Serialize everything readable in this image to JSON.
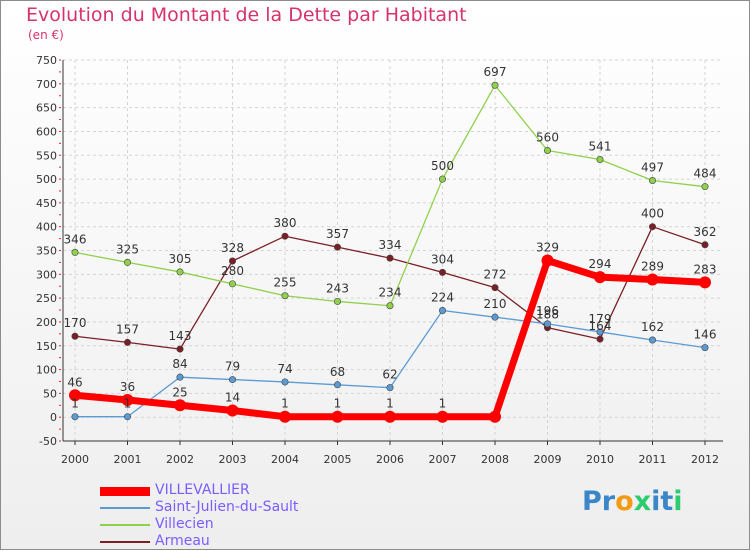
{
  "header": {
    "title": "Evolution du Montant de la Dette par Habitant",
    "subtitle": "(en €)"
  },
  "logo": {
    "text": "Proxiti",
    "letters": [
      "P",
      "r",
      "o",
      "x",
      "i",
      "t",
      "i"
    ],
    "colors": [
      "#3a86c8",
      "#3a86c8",
      "#f39c12",
      "#2ecc71",
      "#3a86c8",
      "#3a86c8",
      "#2ecc71"
    ]
  },
  "chart_data": {
    "type": "line",
    "x": [
      "2000",
      "2001",
      "2002",
      "2003",
      "2004",
      "2005",
      "2006",
      "2007",
      "2008",
      "2009",
      "2010",
      "2011",
      "2012"
    ],
    "ylim": [
      -50,
      750
    ],
    "yticks": [
      -50,
      0,
      50,
      100,
      150,
      200,
      250,
      300,
      350,
      400,
      450,
      500,
      550,
      600,
      650,
      700,
      750
    ],
    "grid": true,
    "legend_position": "bottom-left",
    "series": [
      {
        "name": "Armeau",
        "color": "#7b1f24",
        "values": [
          170,
          157,
          143,
          328,
          380,
          357,
          334,
          304,
          272,
          188,
          164,
          400,
          362
        ],
        "labels": [
          "170",
          "157",
          "143",
          "328",
          "380",
          "357",
          "334",
          "304",
          "272",
          "188",
          "164",
          "400",
          "362"
        ]
      },
      {
        "name": "Villecien",
        "color": "#8fd04c",
        "values": [
          346,
          325,
          305,
          280,
          255,
          243,
          234,
          500,
          697,
          560,
          541,
          497,
          484
        ],
        "labels": [
          "346",
          "325",
          "305",
          "280",
          "255",
          "243",
          "234",
          "500",
          "697",
          "560",
          "541",
          "497",
          "484"
        ]
      },
      {
        "name": "Saint-Julien-du-Sault",
        "color": "#5a9bd4",
        "values": [
          1,
          1,
          84,
          79,
          74,
          68,
          62,
          224,
          210,
          196,
          179,
          162,
          146
        ],
        "labels": [
          "1",
          "1",
          "84",
          "79",
          "74",
          "68",
          "62",
          "224",
          "210",
          "196",
          "179",
          "162",
          "146"
        ]
      },
      {
        "name": "VILLEVALLIER",
        "color": "#ff0000",
        "values": [
          46,
          36,
          25,
          14,
          1,
          1,
          1,
          1,
          1,
          329,
          294,
          289,
          283
        ],
        "labels": [
          "46",
          "36",
          "25",
          "14",
          "1",
          "1",
          "1",
          "1",
          "",
          "329",
          "294",
          "289",
          "283"
        ]
      }
    ],
    "legend": [
      {
        "name": "VILLEVALLIER",
        "color": "#ff0000"
      },
      {
        "name": "Saint-Julien-du-Sault",
        "color": "#5a9bd4"
      },
      {
        "name": "Villecien",
        "color": "#8fd04c"
      },
      {
        "name": "Armeau",
        "color": "#7b1f24"
      }
    ]
  }
}
